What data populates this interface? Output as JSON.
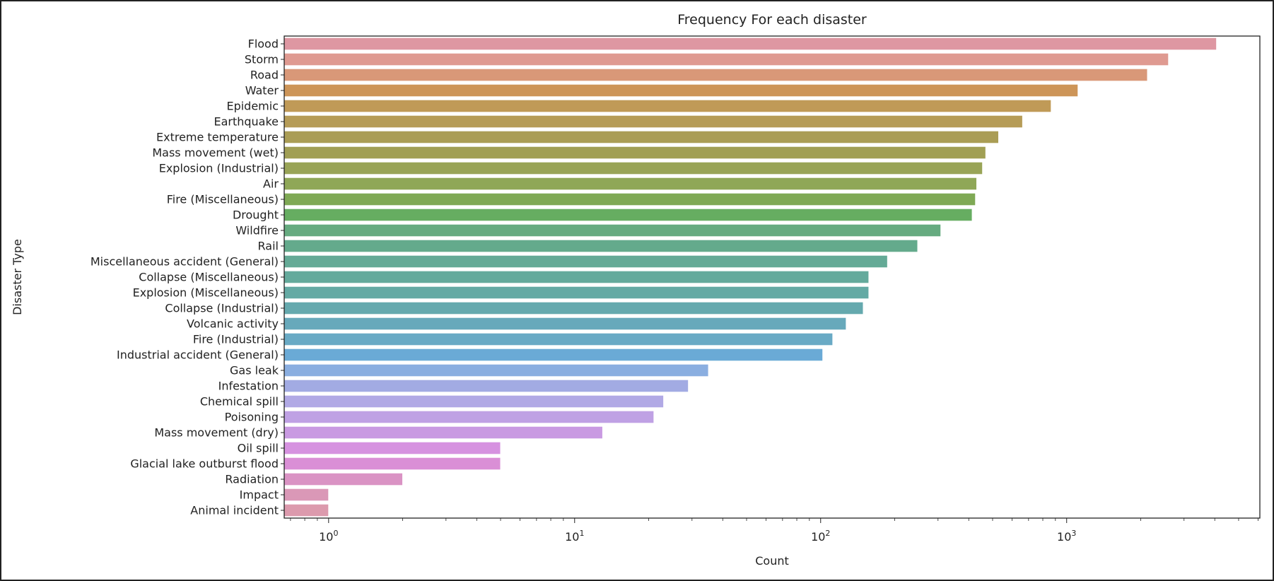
{
  "chart_data": {
    "type": "bar",
    "orientation": "horizontal",
    "title": "Frequency For each disaster",
    "xlabel": "Count",
    "ylabel": "Disaster Type",
    "xscale": "log",
    "xlim": [
      0.66,
      6100
    ],
    "xticks": [
      1,
      10,
      100,
      1000
    ],
    "xtick_labels": [
      {
        "base": "10",
        "exp": "0"
      },
      {
        "base": "10",
        "exp": "1"
      },
      {
        "base": "10",
        "exp": "2"
      },
      {
        "base": "10",
        "exp": "3"
      }
    ],
    "grid": false,
    "categories": [
      "Flood",
      "Storm",
      "Road",
      "Water",
      "Epidemic",
      "Earthquake",
      "Extreme temperature",
      "Mass movement (wet)",
      "Explosion (Industrial)",
      "Air",
      "Fire (Miscellaneous)",
      "Drought",
      "Wildfire",
      "Rail",
      "Miscellaneous accident (General)",
      "Collapse (Miscellaneous)",
      "Explosion (Miscellaneous)",
      "Collapse (Industrial)",
      "Volcanic activity",
      "Fire (Industrial)",
      "Industrial accident (General)",
      "Gas leak",
      "Infestation",
      "Chemical spill",
      "Poisoning",
      "Mass movement (dry)",
      "Oil spill",
      "Glacial lake outburst flood",
      "Radiation",
      "Impact",
      "Animal incident"
    ],
    "values": [
      4066,
      2594,
      2130,
      1112,
      865,
      662,
      529,
      469,
      455,
      431,
      426,
      413,
      308,
      248,
      187,
      157,
      157,
      149,
      127,
      112,
      102,
      35,
      29,
      23,
      21,
      13,
      5,
      5,
      2,
      1,
      1
    ],
    "colors": [
      "#de97a2",
      "#df9a91",
      "#d99878",
      "#cd9558",
      "#c09a57",
      "#b69c57",
      "#aa9d55",
      "#a19f54",
      "#99a457",
      "#8fa757",
      "#7fa955",
      "#66ad61",
      "#66ab80",
      "#64aa8c",
      "#64aa96",
      "#64aa9c",
      "#64aaa4",
      "#65a9ae",
      "#67a9bb",
      "#69aac5",
      "#6aaad6",
      "#8aaee0",
      "#a2abe3",
      "#b1a9e5",
      "#bfa1e4",
      "#c99ae2",
      "#d692e0",
      "#da8fd6",
      "#da93c4",
      "#da98b7",
      "#dc9aad"
    ]
  }
}
